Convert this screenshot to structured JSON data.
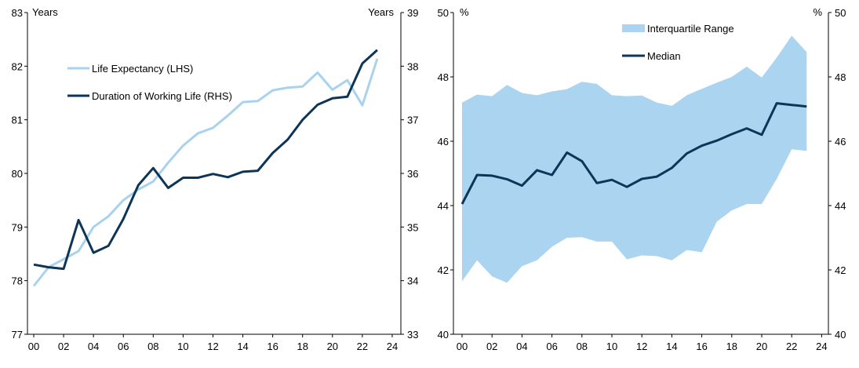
{
  "colors": {
    "life_expectancy": "#a9d2ee",
    "working_life": "#0d3558",
    "iqr_fill": "#aad4f0",
    "median": "#0d3558",
    "axis": "#000000"
  },
  "chart_data": [
    {
      "type": "line",
      "x_tick_labels": [
        "00",
        "02",
        "04",
        "06",
        "08",
        "10",
        "12",
        "14",
        "16",
        "18",
        "20",
        "22",
        "24"
      ],
      "left_axis": {
        "unit": "Years",
        "range": [
          77,
          83
        ],
        "ticks": [
          "77",
          "78",
          "79",
          "80",
          "81",
          "82",
          "83"
        ]
      },
      "right_axis": {
        "unit": "Years",
        "range": [
          33,
          39
        ],
        "ticks": [
          "33",
          "34",
          "35",
          "36",
          "37",
          "38",
          "39"
        ]
      },
      "x": [
        0,
        1,
        2,
        3,
        4,
        5,
        6,
        7,
        8,
        9,
        10,
        11,
        12,
        13,
        14,
        15,
        16,
        17,
        18,
        19,
        20,
        21,
        22,
        23
      ],
      "xlim": [
        0,
        24
      ],
      "series": [
        {
          "name": "Life Expectancy (LHS)",
          "axis": "left",
          "values": [
            77.9,
            78.25,
            78.4,
            78.55,
            79.0,
            79.2,
            79.5,
            79.7,
            79.85,
            80.2,
            80.52,
            80.75,
            80.85,
            81.08,
            81.33,
            81.35,
            81.55,
            81.6,
            81.62,
            81.88,
            81.56,
            81.74,
            81.27,
            82.14
          ]
        },
        {
          "name": "Duration of Working Life (RHS)",
          "axis": "right",
          "values": [
            34.3,
            34.25,
            34.22,
            35.13,
            34.52,
            34.65,
            35.15,
            35.78,
            36.1,
            35.73,
            35.92,
            35.92,
            35.99,
            35.93,
            36.03,
            36.05,
            36.38,
            36.63,
            37.0,
            37.28,
            37.4,
            37.43,
            38.05,
            38.3
          ]
        }
      ]
    },
    {
      "type": "area",
      "x_tick_labels": [
        "00",
        "02",
        "04",
        "06",
        "08",
        "10",
        "12",
        "14",
        "16",
        "18",
        "20",
        "22",
        "24"
      ],
      "left_axis": {
        "unit": "%",
        "range": [
          40,
          50
        ],
        "ticks": [
          "40",
          "42",
          "44",
          "46",
          "48",
          "50"
        ]
      },
      "right_axis": {
        "unit": "%",
        "range": [
          40,
          50
        ],
        "ticks": [
          "40",
          "42",
          "44",
          "46",
          "48",
          "50"
        ]
      },
      "x": [
        0,
        1,
        2,
        3,
        4,
        5,
        6,
        7,
        8,
        9,
        10,
        11,
        12,
        13,
        14,
        15,
        16,
        17,
        18,
        19,
        20,
        21,
        22,
        23
      ],
      "xlim": [
        0,
        24
      ],
      "series": [
        {
          "name": "Interquartile Range",
          "kind": "band",
          "upper": [
            47.2,
            47.45,
            47.4,
            47.75,
            47.5,
            47.43,
            47.55,
            47.62,
            47.85,
            47.78,
            47.43,
            47.4,
            47.42,
            47.2,
            47.1,
            47.43,
            47.63,
            47.82,
            48.0,
            48.32,
            47.98,
            48.6,
            49.28,
            48.77
          ],
          "lower": [
            41.65,
            42.3,
            41.8,
            41.6,
            42.12,
            42.3,
            42.72,
            43.0,
            43.02,
            42.88,
            42.88,
            42.33,
            42.45,
            42.43,
            42.3,
            42.62,
            42.55,
            43.5,
            43.85,
            44.05,
            44.05,
            44.83,
            45.75,
            45.7
          ]
        },
        {
          "name": "Median",
          "kind": "line",
          "values": [
            44.05,
            44.95,
            44.93,
            44.82,
            44.62,
            45.1,
            44.95,
            45.65,
            45.38,
            44.7,
            44.8,
            44.58,
            44.83,
            44.9,
            45.17,
            45.62,
            45.86,
            46.02,
            46.22,
            46.4,
            46.2,
            47.18,
            47.13,
            47.08
          ]
        }
      ]
    }
  ]
}
